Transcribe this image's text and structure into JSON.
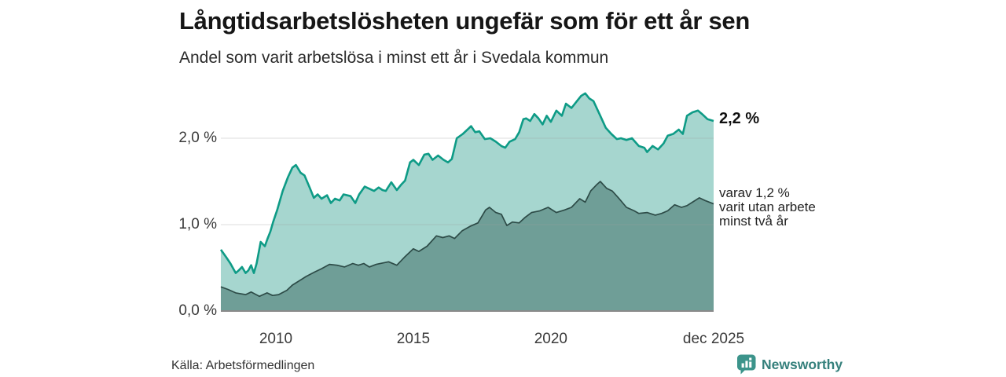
{
  "chart_data": {
    "type": "area",
    "title": "Långtidsarbetslösheten ungefär som för ett år sen",
    "subtitle": "Andel som varit arbetslösa i minst ett år i Svedala kommun",
    "unit": "%",
    "x_range": [
      2008.0,
      2025.92
    ],
    "ylim": [
      0,
      2.6
    ],
    "grid": true,
    "legend_position": "end-of-line-labels",
    "y_ticks": [
      {
        "label": "2,0 %",
        "value": 2.0
      },
      {
        "label": "1,0 %",
        "value": 1.0
      },
      {
        "label": "0,0 %",
        "value": 0.0
      }
    ],
    "x_ticks": [
      {
        "label": "2010",
        "year": 2010
      },
      {
        "label": "2015",
        "year": 2015
      },
      {
        "label": "2020",
        "year": 2020
      },
      {
        "label": "dec 2025",
        "year": 2025.92
      }
    ],
    "series": [
      {
        "id": "total",
        "name": "Andel som varit arbetslösa i minst ett år",
        "line_color": "#0e9b86",
        "fill_color": "#a6d6cf",
        "end_label": "2,2 %",
        "points": [
          [
            2008.0,
            0.71
          ],
          [
            2008.2,
            0.62
          ],
          [
            2008.35,
            0.55
          ],
          [
            2008.54,
            0.44
          ],
          [
            2008.65,
            0.47
          ],
          [
            2008.77,
            0.51
          ],
          [
            2008.9,
            0.44
          ],
          [
            2009.0,
            0.47
          ],
          [
            2009.1,
            0.53
          ],
          [
            2009.2,
            0.44
          ],
          [
            2009.3,
            0.55
          ],
          [
            2009.45,
            0.8
          ],
          [
            2009.6,
            0.75
          ],
          [
            2009.7,
            0.84
          ],
          [
            2009.8,
            0.92
          ],
          [
            2009.9,
            1.03
          ],
          [
            2010.05,
            1.17
          ],
          [
            2010.25,
            1.39
          ],
          [
            2010.44,
            1.55
          ],
          [
            2010.6,
            1.66
          ],
          [
            2010.73,
            1.69
          ],
          [
            2010.9,
            1.6
          ],
          [
            2011.04,
            1.57
          ],
          [
            2011.24,
            1.42
          ],
          [
            2011.38,
            1.31
          ],
          [
            2011.52,
            1.35
          ],
          [
            2011.66,
            1.3
          ],
          [
            2011.86,
            1.34
          ],
          [
            2012.0,
            1.25
          ],
          [
            2012.15,
            1.3
          ],
          [
            2012.32,
            1.28
          ],
          [
            2012.46,
            1.35
          ],
          [
            2012.72,
            1.33
          ],
          [
            2012.89,
            1.25
          ],
          [
            2013.03,
            1.35
          ],
          [
            2013.23,
            1.44
          ],
          [
            2013.37,
            1.42
          ],
          [
            2013.57,
            1.39
          ],
          [
            2013.74,
            1.43
          ],
          [
            2013.88,
            1.4
          ],
          [
            2014.0,
            1.39
          ],
          [
            2014.2,
            1.49
          ],
          [
            2014.4,
            1.4
          ],
          [
            2014.55,
            1.46
          ],
          [
            2014.7,
            1.51
          ],
          [
            2014.88,
            1.72
          ],
          [
            2015.0,
            1.75
          ],
          [
            2015.2,
            1.69
          ],
          [
            2015.4,
            1.81
          ],
          [
            2015.55,
            1.82
          ],
          [
            2015.7,
            1.75
          ],
          [
            2015.9,
            1.8
          ],
          [
            2016.1,
            1.75
          ],
          [
            2016.26,
            1.72
          ],
          [
            2016.4,
            1.76
          ],
          [
            2016.58,
            2.0
          ],
          [
            2016.8,
            2.05
          ],
          [
            2017.0,
            2.11
          ],
          [
            2017.1,
            2.14
          ],
          [
            2017.25,
            2.07
          ],
          [
            2017.4,
            2.08
          ],
          [
            2017.6,
            1.99
          ],
          [
            2017.8,
            2.0
          ],
          [
            2018.0,
            1.96
          ],
          [
            2018.2,
            1.91
          ],
          [
            2018.34,
            1.89
          ],
          [
            2018.5,
            1.96
          ],
          [
            2018.7,
            1.99
          ],
          [
            2018.85,
            2.07
          ],
          [
            2019.0,
            2.22
          ],
          [
            2019.1,
            2.23
          ],
          [
            2019.25,
            2.2
          ],
          [
            2019.4,
            2.28
          ],
          [
            2019.55,
            2.23
          ],
          [
            2019.7,
            2.16
          ],
          [
            2019.85,
            2.26
          ],
          [
            2020.0,
            2.19
          ],
          [
            2020.2,
            2.32
          ],
          [
            2020.4,
            2.26
          ],
          [
            2020.55,
            2.4
          ],
          [
            2020.75,
            2.35
          ],
          [
            2020.95,
            2.43
          ],
          [
            2021.1,
            2.49
          ],
          [
            2021.25,
            2.52
          ],
          [
            2021.4,
            2.46
          ],
          [
            2021.55,
            2.43
          ],
          [
            2021.8,
            2.26
          ],
          [
            2022.0,
            2.12
          ],
          [
            2022.2,
            2.05
          ],
          [
            2022.4,
            1.99
          ],
          [
            2022.55,
            2.0
          ],
          [
            2022.75,
            1.98
          ],
          [
            2022.95,
            2.0
          ],
          [
            2023.2,
            1.91
          ],
          [
            2023.4,
            1.89
          ],
          [
            2023.5,
            1.84
          ],
          [
            2023.7,
            1.91
          ],
          [
            2023.9,
            1.87
          ],
          [
            2024.1,
            1.94
          ],
          [
            2024.25,
            2.03
          ],
          [
            2024.45,
            2.05
          ],
          [
            2024.65,
            2.1
          ],
          [
            2024.8,
            2.05
          ],
          [
            2024.95,
            2.26
          ],
          [
            2025.15,
            2.3
          ],
          [
            2025.35,
            2.32
          ],
          [
            2025.5,
            2.28
          ],
          [
            2025.7,
            2.22
          ],
          [
            2025.92,
            2.2
          ]
        ]
      },
      {
        "id": "two_years",
        "name": "Varav utan arbete minst två år",
        "line_color": "#2d4b47",
        "fill_color": "#6f9e97",
        "end_label_lines": [
          "varav 1,2 %",
          "varit utan arbete",
          "minst två år"
        ],
        "points": [
          [
            2008.0,
            0.28
          ],
          [
            2008.26,
            0.25
          ],
          [
            2008.54,
            0.21
          ],
          [
            2008.9,
            0.19
          ],
          [
            2009.1,
            0.22
          ],
          [
            2009.4,
            0.17
          ],
          [
            2009.68,
            0.21
          ],
          [
            2009.88,
            0.18
          ],
          [
            2010.1,
            0.19
          ],
          [
            2010.4,
            0.24
          ],
          [
            2010.6,
            0.3
          ],
          [
            2010.8,
            0.34
          ],
          [
            2011.1,
            0.4
          ],
          [
            2011.4,
            0.45
          ],
          [
            2011.66,
            0.49
          ],
          [
            2011.95,
            0.54
          ],
          [
            2012.23,
            0.53
          ],
          [
            2012.5,
            0.51
          ],
          [
            2012.8,
            0.55
          ],
          [
            2013.0,
            0.53
          ],
          [
            2013.2,
            0.55
          ],
          [
            2013.4,
            0.51
          ],
          [
            2013.65,
            0.54
          ],
          [
            2014.1,
            0.57
          ],
          [
            2014.4,
            0.53
          ],
          [
            2014.7,
            0.63
          ],
          [
            2015.0,
            0.72
          ],
          [
            2015.2,
            0.69
          ],
          [
            2015.5,
            0.75
          ],
          [
            2015.84,
            0.87
          ],
          [
            2016.07,
            0.85
          ],
          [
            2016.3,
            0.87
          ],
          [
            2016.5,
            0.84
          ],
          [
            2016.78,
            0.93
          ],
          [
            2017.06,
            0.98
          ],
          [
            2017.35,
            1.02
          ],
          [
            2017.63,
            1.17
          ],
          [
            2017.77,
            1.2
          ],
          [
            2018.0,
            1.14
          ],
          [
            2018.2,
            1.12
          ],
          [
            2018.4,
            0.99
          ],
          [
            2018.6,
            1.03
          ],
          [
            2018.85,
            1.02
          ],
          [
            2019.05,
            1.08
          ],
          [
            2019.3,
            1.14
          ],
          [
            2019.6,
            1.16
          ],
          [
            2019.9,
            1.2
          ],
          [
            2020.2,
            1.14
          ],
          [
            2020.5,
            1.17
          ],
          [
            2020.75,
            1.2
          ],
          [
            2021.05,
            1.3
          ],
          [
            2021.25,
            1.26
          ],
          [
            2021.45,
            1.39
          ],
          [
            2021.66,
            1.46
          ],
          [
            2021.8,
            1.5
          ],
          [
            2022.03,
            1.42
          ],
          [
            2022.23,
            1.39
          ],
          [
            2022.46,
            1.31
          ],
          [
            2022.75,
            1.2
          ],
          [
            2023.03,
            1.16
          ],
          [
            2023.2,
            1.13
          ],
          [
            2023.5,
            1.14
          ],
          [
            2023.8,
            1.11
          ],
          [
            2024.03,
            1.13
          ],
          [
            2024.25,
            1.16
          ],
          [
            2024.5,
            1.23
          ],
          [
            2024.75,
            1.2
          ],
          [
            2024.95,
            1.22
          ],
          [
            2025.15,
            1.26
          ],
          [
            2025.4,
            1.31
          ],
          [
            2025.6,
            1.28
          ],
          [
            2025.92,
            1.24
          ]
        ]
      }
    ],
    "colors": {
      "gridline": "#9f9f9f",
      "baseline": "#8a8a8a"
    }
  },
  "footer": {
    "source": "Källa: Arbetsförmedlingen",
    "brand_name": "Newsworthy",
    "brand_text_color": "#35807c",
    "brand_icon_color": "#3c948b",
    "brand_icon": "bar-chart-speech-bubble-icon"
  }
}
